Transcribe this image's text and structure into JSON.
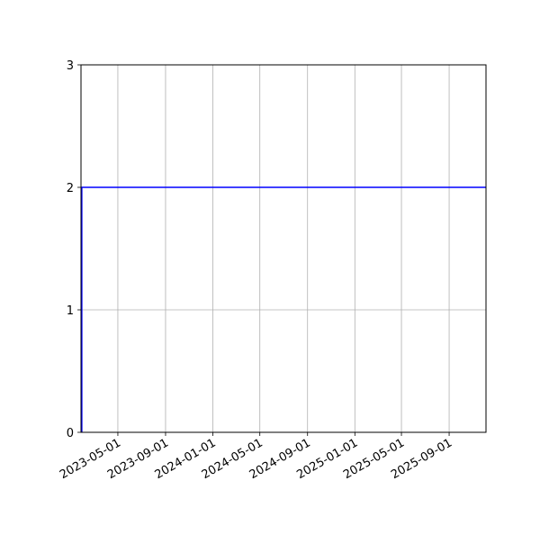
{
  "chart_data": {
    "type": "line",
    "title": "",
    "xlabel": "",
    "ylabel": "",
    "x_type": "date",
    "xlim": [
      "2023-01-26",
      "2025-12-05"
    ],
    "ylim": [
      0,
      3
    ],
    "grid": true,
    "x_ticks": [
      "2023-05-01",
      "2023-09-01",
      "2024-01-01",
      "2024-05-01",
      "2024-09-01",
      "2025-01-01",
      "2025-05-01",
      "2025-09-01"
    ],
    "y_ticks": [
      0,
      1,
      2,
      3
    ],
    "y_tick_labels": [
      "0",
      "1",
      "2",
      "3"
    ],
    "series": [
      {
        "color": "#0000ff",
        "x": [
          "2023-01-28",
          "2023-01-28",
          "2025-12-05"
        ],
        "y": [
          0,
          2,
          2
        ]
      }
    ]
  }
}
